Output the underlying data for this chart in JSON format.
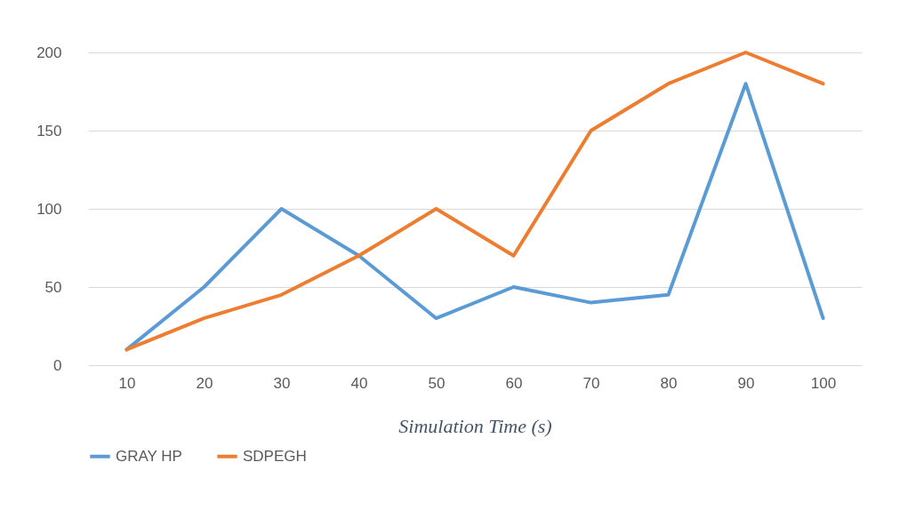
{
  "chart_data": {
    "type": "line",
    "xlabel": "Simulation Time (s)",
    "categories": [
      "10",
      "20",
      "30",
      "40",
      "50",
      "60",
      "70",
      "80",
      "90",
      "100"
    ],
    "series": [
      {
        "name": "GRAY HP",
        "color": "#5b9bd5",
        "values": [
          10,
          50,
          100,
          70,
          30,
          50,
          40,
          45,
          180,
          30
        ]
      },
      {
        "name": "SDPEGH",
        "color": "#ed7d31",
        "values": [
          10,
          30,
          45,
          70,
          100,
          70,
          150,
          180,
          200,
          180
        ]
      }
    ],
    "ylim": [
      0,
      200
    ],
    "yticks": [
      0,
      50,
      100,
      150,
      200
    ],
    "grid": "y",
    "legend": "bottom"
  }
}
